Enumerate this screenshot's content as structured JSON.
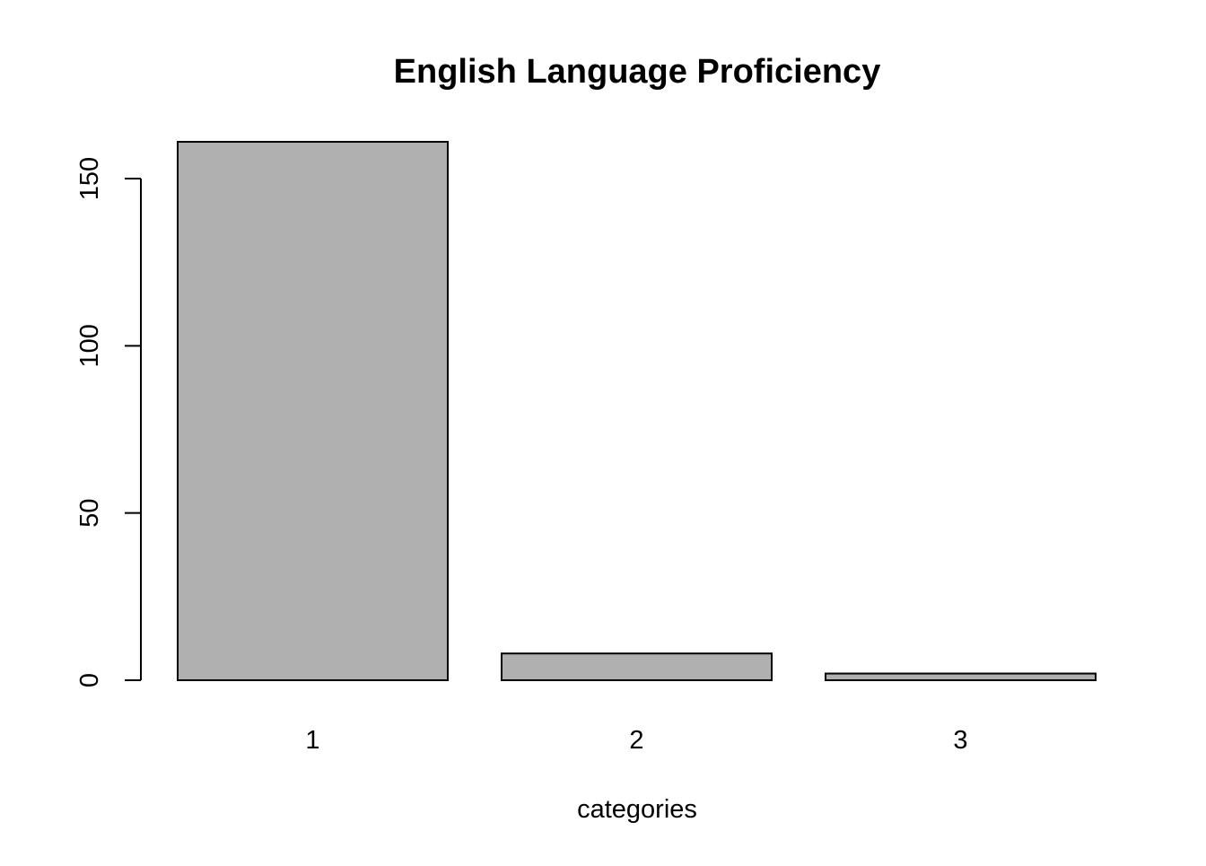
{
  "chart_data": {
    "type": "bar",
    "title": "English Language Proficiency",
    "xlabel": "categories",
    "ylabel": "",
    "categories": [
      "1",
      "2",
      "3"
    ],
    "values": [
      161,
      8,
      2
    ],
    "ylim": [
      0,
      161
    ],
    "yticks": [
      0,
      50,
      100,
      150
    ],
    "grid": false,
    "legend": "none",
    "colors": {
      "bar_fill": "#b0b0b0",
      "bar_stroke": "#000000",
      "axis": "#000000",
      "background": "#ffffff"
    }
  }
}
